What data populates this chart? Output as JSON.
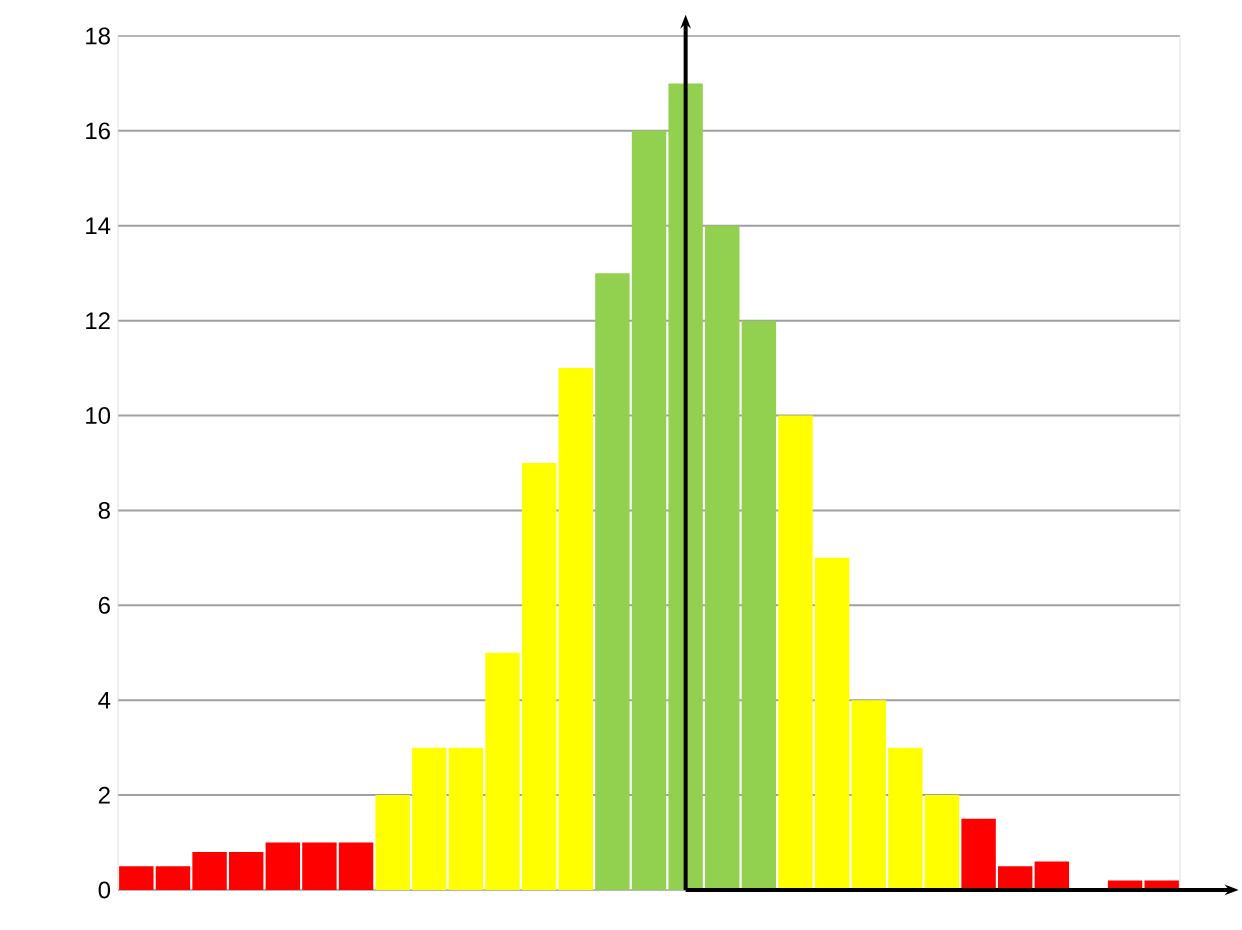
{
  "chart_data": {
    "type": "bar",
    "categories": [
      null,
      null,
      null,
      null,
      null,
      null,
      null,
      null,
      null,
      null,
      null,
      null,
      null,
      null,
      null,
      null,
      null,
      null,
      null,
      null,
      null,
      null,
      null,
      null,
      null,
      null,
      null,
      null,
      null
    ],
    "values": [
      0.5,
      0.5,
      0.8,
      0.8,
      1,
      1,
      1,
      2,
      3,
      3,
      5,
      9,
      11,
      13,
      16,
      17,
      14,
      12,
      10,
      7,
      4,
      3,
      2,
      1.5,
      0.5,
      0.6,
      0,
      0.2,
      0.2
    ],
    "colors": [
      "#ff0000",
      "#ff0000",
      "#ff0000",
      "#ff0000",
      "#ff0000",
      "#ff0000",
      "#ff0000",
      "#ffff00",
      "#ffff00",
      "#ffff00",
      "#ffff00",
      "#ffff00",
      "#ffff00",
      "#92d050",
      "#92d050",
      "#92d050",
      "#92d050",
      "#92d050",
      "#ffff00",
      "#ffff00",
      "#ffff00",
      "#ffff00",
      "#ffff00",
      "#ff0000",
      "#ff0000",
      "#ff0000",
      "#ff0000",
      "#ff0000",
      "#ff0000"
    ],
    "ylim": [
      0,
      18
    ],
    "yticks": [
      0,
      2,
      4,
      6,
      8,
      10,
      12,
      14,
      16,
      18
    ],
    "grid": "y"
  }
}
